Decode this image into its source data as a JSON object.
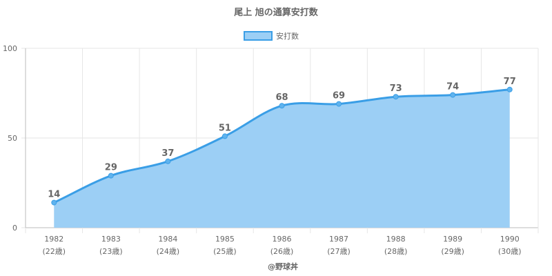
{
  "chart_data": {
    "type": "area",
    "title": "尾上 旭の通算安打数",
    "legend": "top",
    "grid": true,
    "ylim": [
      0,
      100
    ],
    "yticks": [
      0,
      50,
      100
    ],
    "categories": [
      "1982",
      "1983",
      "1984",
      "1985",
      "1986",
      "1987",
      "1988",
      "1989",
      "1990"
    ],
    "sublabels": [
      "(22歳)",
      "(23歳)",
      "(24歳)",
      "(25歳)",
      "(26歳)",
      "(27歳)",
      "(28歳)",
      "(29歳)",
      "(30歳)"
    ],
    "series": [
      {
        "name": "安打数",
        "values": [
          14,
          29,
          37,
          51,
          68,
          69,
          73,
          74,
          77
        ]
      }
    ],
    "colors": {
      "line": "#3a9ee6",
      "fill": "#9ccff5"
    },
    "credit": "@野球丼"
  }
}
